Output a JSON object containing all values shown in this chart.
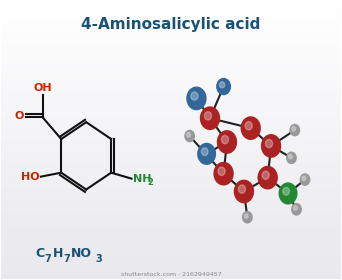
{
  "title": "4-Aminosalicylic acid",
  "title_color": "#1a5276",
  "title_fontsize": 11,
  "formula": "C",
  "formula_sub7": "7",
  "formula_H": "H",
  "formula_sub72": "7",
  "formula_rest": "NO",
  "formula_sub3": "3",
  "formula_color": "#1a5276",
  "background_top": "#e8e8e8",
  "background_bottom": "#ffffff",
  "watermark": "shutterstock.com · 2162949457",
  "struct_color": "#111111",
  "O_color": "#cc2200",
  "N_color": "#228833",
  "OH_color": "#cc2200",
  "mol_C_color": "#aa2222",
  "mol_N_color": "#336699",
  "mol_O_color": "#228833",
  "mol_H_color": "#999999"
}
